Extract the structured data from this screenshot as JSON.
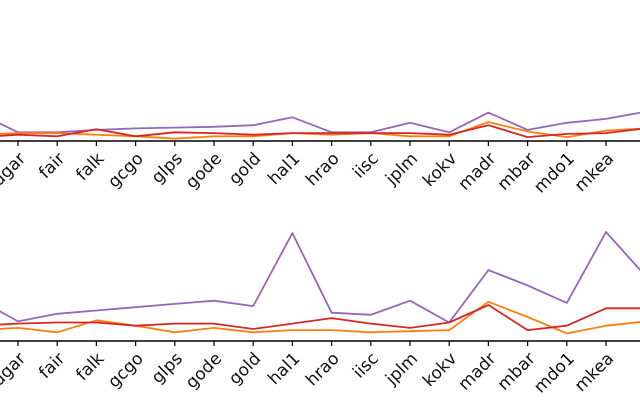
{
  "chart_data": [
    {
      "type": "line",
      "panel": "upper",
      "categories": [
        "dgar",
        "fair",
        "falk",
        "gcgo",
        "glps",
        "gode",
        "gold",
        "hal1",
        "hrao",
        "iisc",
        "jplm",
        "kokv",
        "madr",
        "mbar",
        "mdo1",
        "mkea"
      ],
      "ylim": [
        0,
        1
      ],
      "grid": false,
      "legend": "none",
      "series": [
        {
          "color": "#9467bd",
          "lead_in": 0.35,
          "values": [
            0.11,
            0.11,
            0.14,
            0.16,
            0.17,
            0.18,
            0.2,
            0.3,
            0.11,
            0.11,
            0.23,
            0.11,
            0.36,
            0.14,
            0.23,
            0.28
          ],
          "lead_out": 0.37
        },
        {
          "color": "#ff7f0e",
          "lead_in": 0.08,
          "values": [
            0.1,
            0.1,
            0.08,
            0.06,
            0.03,
            0.06,
            0.06,
            0.1,
            0.08,
            0.1,
            0.06,
            0.06,
            0.24,
            0.12,
            0.05,
            0.13
          ],
          "lead_out": 0.16
        },
        {
          "color": "#d62728",
          "lead_in": 0.05,
          "values": [
            0.08,
            0.06,
            0.15,
            0.06,
            0.11,
            0.1,
            0.08,
            0.1,
            0.1,
            0.1,
            0.1,
            0.08,
            0.2,
            0.05,
            0.09,
            0.1
          ],
          "lead_out": 0.16
        }
      ]
    },
    {
      "type": "line",
      "panel": "lower",
      "categories": [
        "dgar",
        "fair",
        "falk",
        "gcgo",
        "glps",
        "gode",
        "gold",
        "hal1",
        "hrao",
        "iisc",
        "jplm",
        "kokv",
        "madr",
        "mbar",
        "mdo1",
        "mkea"
      ],
      "ylim": [
        0,
        1
      ],
      "grid": false,
      "legend": "none",
      "series": [
        {
          "color": "#9467bd",
          "lead_in": 0.38,
          "values": [
            0.18,
            0.25,
            0.28,
            0.31,
            0.34,
            0.37,
            0.32,
            0.99,
            0.26,
            0.24,
            0.37,
            0.17,
            0.65,
            0.51,
            0.35,
            1.0
          ],
          "lead_out": 0.6
        },
        {
          "color": "#ff7f0e",
          "lead_in": 0.1,
          "values": [
            0.12,
            0.08,
            0.19,
            0.14,
            0.08,
            0.12,
            0.08,
            0.1,
            0.1,
            0.08,
            0.09,
            0.1,
            0.36,
            0.22,
            0.07,
            0.14
          ],
          "lead_out": 0.18
        },
        {
          "color": "#d62728",
          "lead_in": 0.14,
          "values": [
            0.16,
            0.17,
            0.17,
            0.14,
            0.16,
            0.16,
            0.11,
            0.16,
            0.21,
            0.16,
            0.12,
            0.17,
            0.33,
            0.1,
            0.14,
            0.3
          ],
          "lead_out": 0.3
        }
      ]
    }
  ]
}
